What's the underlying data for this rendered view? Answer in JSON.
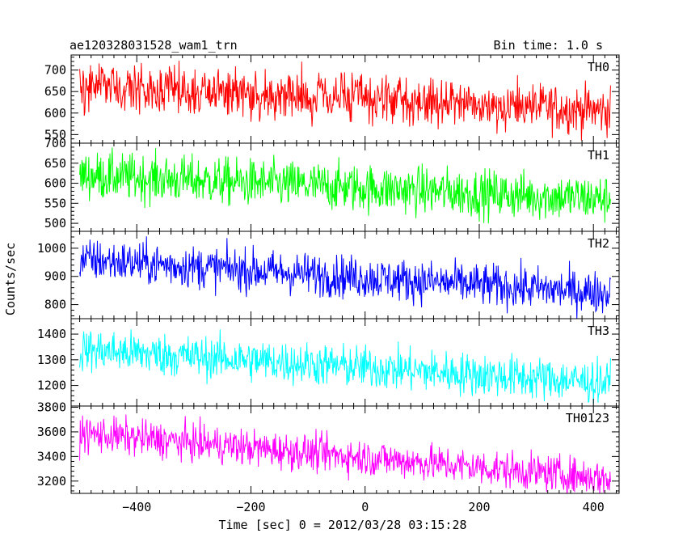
{
  "header": {
    "title": "ae120328031528_wam1_trn",
    "bin_time": "Bin time: 1.0 s"
  },
  "chart_data": {
    "type": "line",
    "title": "ae120328031528_wam1_trn",
    "xlabel": "Time [sec] 0 = 2012/03/28 03:15:28",
    "ylabel": "Counts/sec",
    "xlim": [
      -515,
      445
    ],
    "x_data_range": [
      -500,
      430
    ],
    "bin_time_s": 1.0,
    "x_ticks": [
      -400,
      -200,
      0,
      200,
      400
    ],
    "x_tick_labels": [
      "−400",
      "−200",
      "0",
      "200",
      "400"
    ],
    "grid": false,
    "panels": [
      {
        "name": "TH0",
        "color": "#ff0000",
        "ylim": [
          530,
          735
        ],
        "y_ticks": [
          550,
          600,
          650,
          700
        ],
        "trend_start": 665,
        "trend_end": 605,
        "noise_amplitude": 28
      },
      {
        "name": "TH1",
        "color": "#00ff00",
        "ylim": [
          480,
          700
        ],
        "y_ticks": [
          500,
          550,
          600,
          650,
          700
        ],
        "trend_start": 620,
        "trend_end": 560,
        "noise_amplitude": 30
      },
      {
        "name": "TH2",
        "color": "#0000ff",
        "ylim": [
          750,
          1060
        ],
        "y_ticks": [
          800,
          900,
          1000
        ],
        "trend_start": 960,
        "trend_end": 840,
        "noise_amplitude": 38
      },
      {
        "name": "TH3",
        "color": "#00ffff",
        "ylim": [
          1120,
          1460
        ],
        "y_ticks": [
          1200,
          1300,
          1400
        ],
        "trend_start": 1340,
        "trend_end": 1210,
        "noise_amplitude": 42
      },
      {
        "name": "TH0123",
        "color": "#ff00ff",
        "ylim": [
          3100,
          3810
        ],
        "y_ticks": [
          3200,
          3400,
          3600,
          3800
        ],
        "trend_start": 3590,
        "trend_end": 3220,
        "noise_amplitude": 75
      }
    ]
  }
}
